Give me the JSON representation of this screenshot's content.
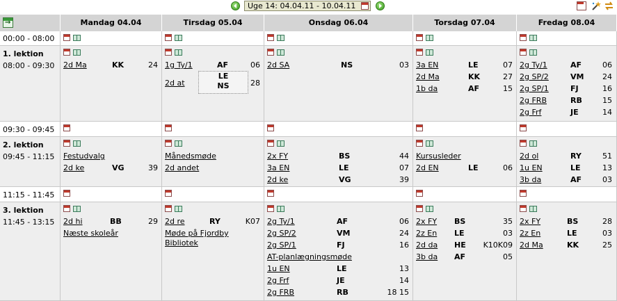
{
  "week_nav": {
    "label": "Uge 14: 04.04.11 - 10.04.11",
    "prev_icon": "arrow-left-icon",
    "next_icon": "arrow-right-icon",
    "calendar_icon": "calendar-icon"
  },
  "toolbar": {
    "icons": [
      "calendar-icon",
      "magic-wand-icon",
      "swap-icon"
    ]
  },
  "days": [
    {
      "label": "Mandag 04.04"
    },
    {
      "label": "Tirsdag 05.04"
    },
    {
      "label": "Onsdag 06.04"
    },
    {
      "label": "Torsdag 07.04"
    },
    {
      "label": "Fredag 08.04"
    }
  ],
  "slots": [
    {
      "time": "00:00 - 08:00",
      "lesson": ""
    },
    {
      "time": "08:00 - 09:30",
      "lesson": "1. lektion"
    },
    {
      "time": "09:30 - 09:45",
      "lesson": ""
    },
    {
      "time": "09:45 - 11:15",
      "lesson": "2. lektion"
    },
    {
      "time": "11:15 - 11:45",
      "lesson": ""
    },
    {
      "time": "11:45 - 13:15",
      "lesson": "3. lektion"
    }
  ],
  "lessons": {
    "l1": {
      "mon": [
        {
          "cls": "2d Ma",
          "tch": "KK",
          "room": "24"
        }
      ],
      "tue": [
        {
          "cls": "1g Ty/1",
          "tch": "AF",
          "room": "06"
        },
        {
          "cls": "2d at",
          "tch1": "LE",
          "tch2": "NS",
          "room": "28"
        }
      ],
      "wed": [
        {
          "cls": "2d SA",
          "tch": "NS",
          "room": "03"
        }
      ],
      "thu": [
        {
          "cls": "3a EN",
          "tch": "LE",
          "room": "07"
        },
        {
          "cls": "2d Ma",
          "tch": "KK",
          "room": "27"
        },
        {
          "cls": "1b da",
          "tch": "AF",
          "room": "15"
        }
      ],
      "fri": [
        {
          "cls": "2g Ty/1",
          "tch": "AF",
          "room": "06"
        },
        {
          "cls": "2g SP/2",
          "tch": "VM",
          "room": "24"
        },
        {
          "cls": "2g SP/1",
          "tch": "FJ",
          "room": "16"
        },
        {
          "cls": "2g FRB",
          "tch": "RB",
          "room": "15"
        },
        {
          "cls": "2g Frf",
          "tch": "JE",
          "room": "14"
        }
      ]
    },
    "l2": {
      "mon": [
        {
          "event": "Festudvalg"
        },
        {
          "cls": "2d ke",
          "tch": "VG",
          "room": "39"
        }
      ],
      "tue": [
        {
          "event": "Månedsmøde"
        },
        {
          "event": "2d andet"
        }
      ],
      "wed": [
        {
          "cls": "2x FY",
          "tch": "BS",
          "room": "44"
        },
        {
          "cls": "3a EN",
          "tch": "LE",
          "room": "07"
        },
        {
          "cls": "2d ke",
          "tch": "VG",
          "room": "39"
        }
      ],
      "thu": [
        {
          "event": "Kursusleder"
        },
        {
          "cls": "2d EN",
          "tch": "LE",
          "room": "06"
        }
      ],
      "fri": [
        {
          "cls": "2d ol",
          "tch": "RY",
          "room": "51"
        },
        {
          "cls": "1u EN",
          "tch": "LE",
          "room": "13"
        },
        {
          "cls": "3b da",
          "tch": "AF",
          "room": "03"
        }
      ]
    },
    "l3": {
      "mon": [
        {
          "cls": "2d hi",
          "tch": "BB",
          "room": "29"
        },
        {
          "event": "Næste skoleår"
        }
      ],
      "tue": [
        {
          "cls": "2d re",
          "tch": "RY",
          "room": "K07"
        },
        {
          "event": "Møde på Fjordby Bibliotek"
        }
      ],
      "wed": [
        {
          "cls": "2g Ty/1",
          "tch": "AF",
          "room": "06"
        },
        {
          "cls": "2g SP/2",
          "tch": "VM",
          "room": "24"
        },
        {
          "cls": "2g SP/1",
          "tch": "FJ",
          "room": "16"
        },
        {
          "event": "AT-planlægningsmøde"
        },
        {
          "cls": "1u EN",
          "tch": "LE",
          "room": "13"
        },
        {
          "cls": "2g Frf",
          "tch": "JE",
          "room": "14"
        },
        {
          "cls": "2g FRB",
          "tch": "RB",
          "room": "18 15"
        }
      ],
      "thu": [
        {
          "cls": "2x FY",
          "tch": "BS",
          "room": "35"
        },
        {
          "cls": "2z En",
          "tch": "LE",
          "room": "03"
        },
        {
          "cls": "2d da",
          "tch": "HE",
          "room": "K10K09"
        },
        {
          "cls": "3b da",
          "tch": "AF",
          "room": "05"
        }
      ],
      "fri": [
        {
          "cls": "2x FY",
          "tch": "BS",
          "room": "28"
        },
        {
          "cls": "2z En",
          "tch": "LE",
          "room": "03"
        },
        {
          "cls": "2d Ma",
          "tch": "KK",
          "room": "25"
        }
      ]
    }
  }
}
